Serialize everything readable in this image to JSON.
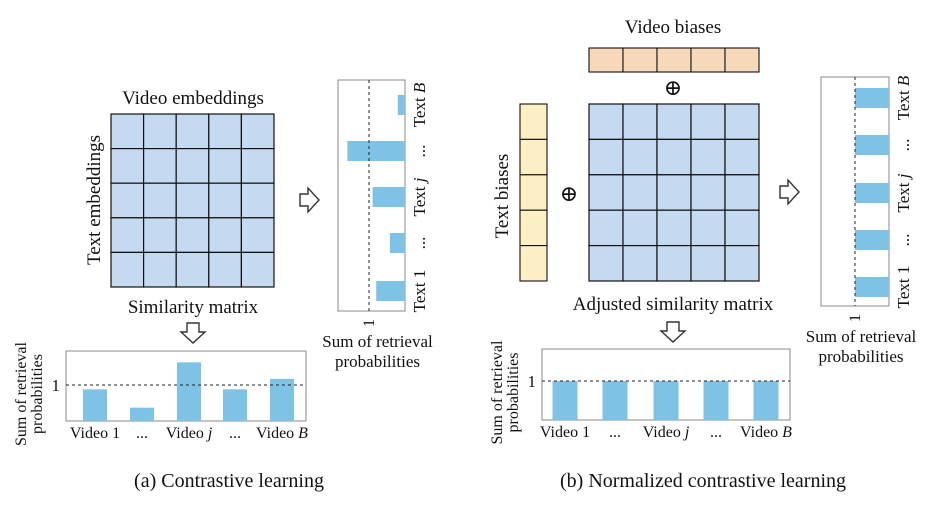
{
  "panel_a": {
    "caption": "(a) Contrastive learning",
    "video_embeddings_label": "Video embeddings",
    "text_embeddings_label": "Text embeddings",
    "similarity_label": "Similarity matrix",
    "grid_rows": 5,
    "grid_cols": 5,
    "bottom_chart": {
      "type": "bar",
      "ylabel_line1": "Sum of retrieval",
      "ylabel_line2": "probabilities",
      "ref_value": 1,
      "ref_label": "1",
      "categories": [
        "Video 1",
        "...",
        "Video j",
        "...",
        "Video B"
      ],
      "cat_main": [
        "Video 1",
        "...",
        "Video ",
        "...",
        "Video "
      ],
      "cat_ital": [
        "",
        "",
        "j",
        "",
        "B"
      ],
      "values": [
        0.88,
        0.37,
        1.63,
        0.88,
        1.17
      ]
    },
    "side_chart": {
      "type": "bar",
      "xlabel_line1": "Sum of retrieval",
      "xlabel_line2": "probabilities",
      "ref_value": 1,
      "ref_label": "1",
      "categories": [
        "Text 1",
        "...",
        "Text j",
        "...",
        "Text B"
      ],
      "cat_main": [
        "Text 1",
        "...",
        "Text ",
        "...",
        "Text "
      ],
      "cat_ital": [
        "",
        "",
        "j",
        "",
        "B"
      ],
      "values": [
        0.8,
        0.42,
        0.9,
        1.6,
        0.2
      ]
    }
  },
  "panel_b": {
    "caption": "(b) Normalized contrastive learning",
    "video_biases_label": "Video biases",
    "text_biases_label": "Text biases",
    "similarity_label": "Adjusted similarity matrix",
    "plus_symbol": "⊕",
    "grid_rows": 5,
    "grid_cols": 5,
    "bottom_chart": {
      "type": "bar",
      "ylabel_line1": "Sum of retrieval",
      "ylabel_line2": "probabilities",
      "ref_value": 1,
      "ref_label": "1",
      "categories": [
        "Video 1",
        "...",
        "Video j",
        "...",
        "Video B"
      ],
      "cat_main": [
        "Video 1",
        "...",
        "Video ",
        "...",
        "Video "
      ],
      "cat_ital": [
        "",
        "",
        "j",
        "",
        "B"
      ],
      "values": [
        1,
        1,
        1,
        1,
        1
      ]
    },
    "side_chart": {
      "type": "bar",
      "xlabel_line1": "Sum of retrieval",
      "xlabel_line2": "probabilities",
      "ref_value": 1,
      "ref_label": "1",
      "categories": [
        "Text 1",
        "...",
        "Text j",
        "...",
        "Text B"
      ],
      "cat_main": [
        "Text 1",
        "...",
        "Text ",
        "...",
        "Text "
      ],
      "cat_ital": [
        "",
        "",
        "j",
        "",
        "B"
      ],
      "values": [
        1,
        1,
        1,
        1,
        1
      ]
    }
  },
  "chart_data": [
    {
      "type": "bar",
      "ylabel": "Sum of retrieval probabilities",
      "categories": [
        "Video 1",
        "...",
        "Video j",
        "...",
        "Video B"
      ],
      "values": [
        0.88,
        0.37,
        1.63,
        0.88,
        1.17
      ],
      "reference_line": 1
    },
    {
      "type": "bar",
      "xlabel": "Sum of retrieval probabilities",
      "categories": [
        "Text 1",
        "...",
        "Text j",
        "...",
        "Text B"
      ],
      "values": [
        0.8,
        0.42,
        0.9,
        1.6,
        0.2
      ],
      "reference_line": 1
    },
    {
      "type": "bar",
      "ylabel": "Sum of retrieval probabilities",
      "categories": [
        "Video 1",
        "...",
        "Video j",
        "...",
        "Video B"
      ],
      "values": [
        1,
        1,
        1,
        1,
        1
      ],
      "reference_line": 1
    },
    {
      "type": "bar",
      "xlabel": "Sum of retrieval probabilities",
      "categories": [
        "Text 1",
        "...",
        "Text j",
        "...",
        "Text B"
      ],
      "values": [
        1,
        1,
        1,
        1,
        1
      ],
      "reference_line": 1
    }
  ]
}
